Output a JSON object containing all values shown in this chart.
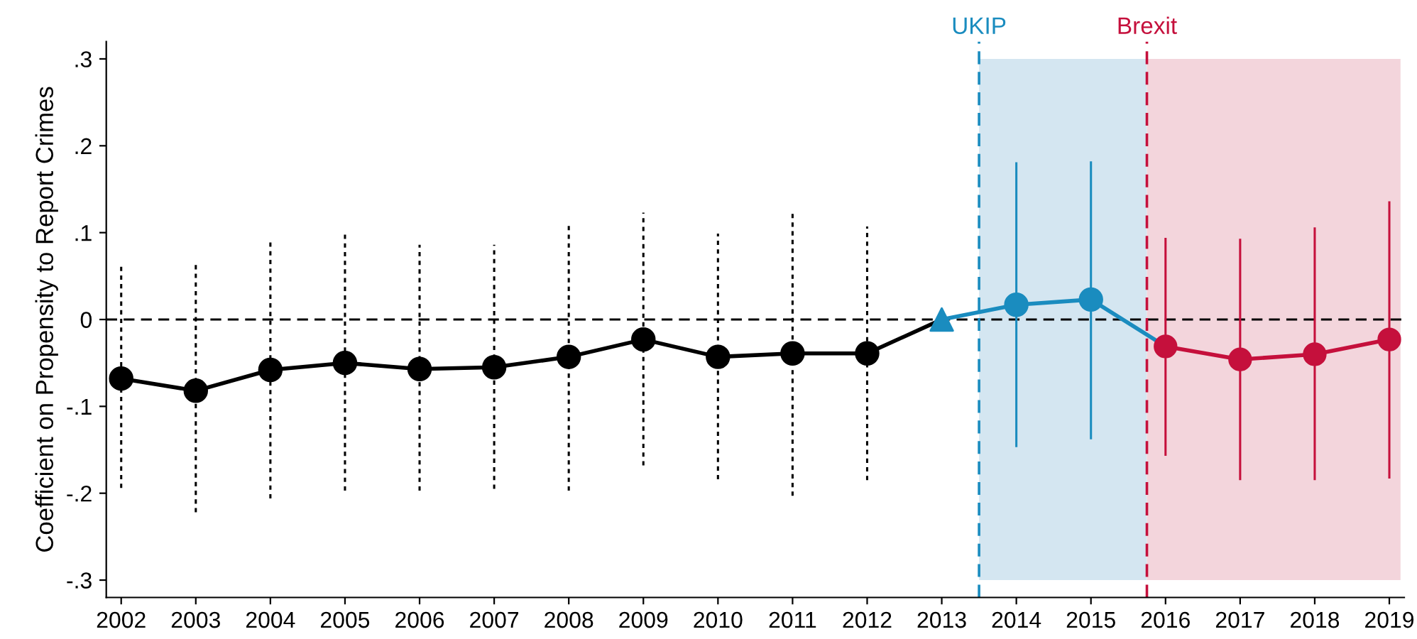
{
  "chart_data": {
    "type": "scatter",
    "ylabel": "Coefficient on Propensity to Report Crimes",
    "xlim": [
      2001.8,
      2019.2
    ],
    "xticks": [
      2002,
      2003,
      2004,
      2005,
      2006,
      2007,
      2008,
      2009,
      2010,
      2011,
      2012,
      2013,
      2014,
      2015,
      2016,
      2017,
      2018,
      2019
    ],
    "ylim": [
      -0.32,
      0.32
    ],
    "yticks": [
      {
        "value": -0.3,
        "label": "-.3"
      },
      {
        "value": -0.2,
        "label": "-.2"
      },
      {
        "value": -0.1,
        "label": "-.1"
      },
      {
        "value": 0,
        "label": "0"
      },
      {
        "value": 0.1,
        "label": ".1"
      },
      {
        "value": 0.2,
        "label": ".2"
      },
      {
        "value": 0.3,
        "label": ".3"
      }
    ],
    "grid": false,
    "series": [
      {
        "type": "line",
        "color": "#000000",
        "marker": "none",
        "line_style": "solid",
        "x": [
          2002,
          2003,
          2004,
          2005,
          2006,
          2007,
          2008,
          2009,
          2010,
          2011,
          2012,
          2013
        ],
        "values": [
          -0.068,
          -0.082,
          -0.058,
          -0.05,
          -0.057,
          -0.055,
          -0.043,
          -0.023,
          -0.043,
          -0.039,
          -0.039,
          0
        ]
      },
      {
        "type": "scatter",
        "color": "#000000",
        "marker": "circle",
        "line_style": "dotted",
        "x": [
          2002,
          2003,
          2004,
          2005,
          2006,
          2007,
          2008,
          2009,
          2010,
          2011,
          2012
        ],
        "values": [
          -0.068,
          -0.082,
          -0.058,
          -0.05,
          -0.057,
          -0.055,
          -0.043,
          -0.023,
          -0.043,
          -0.039,
          -0.039
        ],
        "errors": [
          [
            -0.194,
            0.065
          ],
          [
            -0.222,
            0.064
          ],
          [
            -0.206,
            0.092
          ],
          [
            -0.197,
            0.099
          ],
          [
            -0.197,
            0.086
          ],
          [
            -0.195,
            0.086
          ],
          [
            -0.197,
            0.111
          ],
          [
            -0.168,
            0.123
          ],
          [
            -0.184,
            0.099
          ],
          [
            -0.203,
            0.124
          ],
          [
            -0.185,
            0.107
          ]
        ]
      },
      {
        "type": "line",
        "color": "#1a8cbf",
        "marker": "none",
        "line_style": "solid",
        "x": [
          2013,
          2014,
          2015,
          2016
        ],
        "values": [
          0,
          0.017,
          0.023,
          -0.031
        ]
      },
      {
        "color": "#1a8cbf",
        "marker": "triangle",
        "x": [
          2013
        ],
        "values": [
          0
        ]
      },
      {
        "type": "scatter",
        "color": "#1a8cbf",
        "marker": "circle",
        "line_style": "solid",
        "x": [
          2014,
          2015
        ],
        "values": [
          0.017,
          0.023
        ],
        "errors": [
          [
            -0.147,
            0.181
          ],
          [
            -0.138,
            0.182
          ]
        ]
      },
      {
        "type": "line",
        "color": "#c5103c",
        "marker": "circle",
        "line_style": "solid",
        "x": [
          2016,
          2017,
          2018,
          2019
        ],
        "values": [
          -0.031,
          -0.046,
          -0.04,
          -0.023
        ],
        "errors": [
          [
            -0.157,
            0.094
          ],
          [
            -0.185,
            0.093
          ],
          [
            -0.185,
            0.106
          ],
          [
            -0.183,
            0.136
          ]
        ]
      }
    ],
    "ref_lines": [
      {
        "axis": "y",
        "value": 0,
        "color": "#000000",
        "line_style": "dashed"
      },
      {
        "axis": "x",
        "value": 2013.5,
        "label": "UKIP",
        "color": "#1a8cbf",
        "line_style": "dashed"
      },
      {
        "axis": "x",
        "value": 2015.75,
        "label": "Brexit",
        "color": "#c5103c",
        "line_style": "dashed"
      }
    ],
    "bands": [
      {
        "axis": "x",
        "from": 2013.5,
        "to": 2015.75,
        "color": "#d4e6f1"
      },
      {
        "axis": "x",
        "from": 2015.75,
        "to": 2019.15,
        "color": "#f3d5dc"
      }
    ]
  }
}
